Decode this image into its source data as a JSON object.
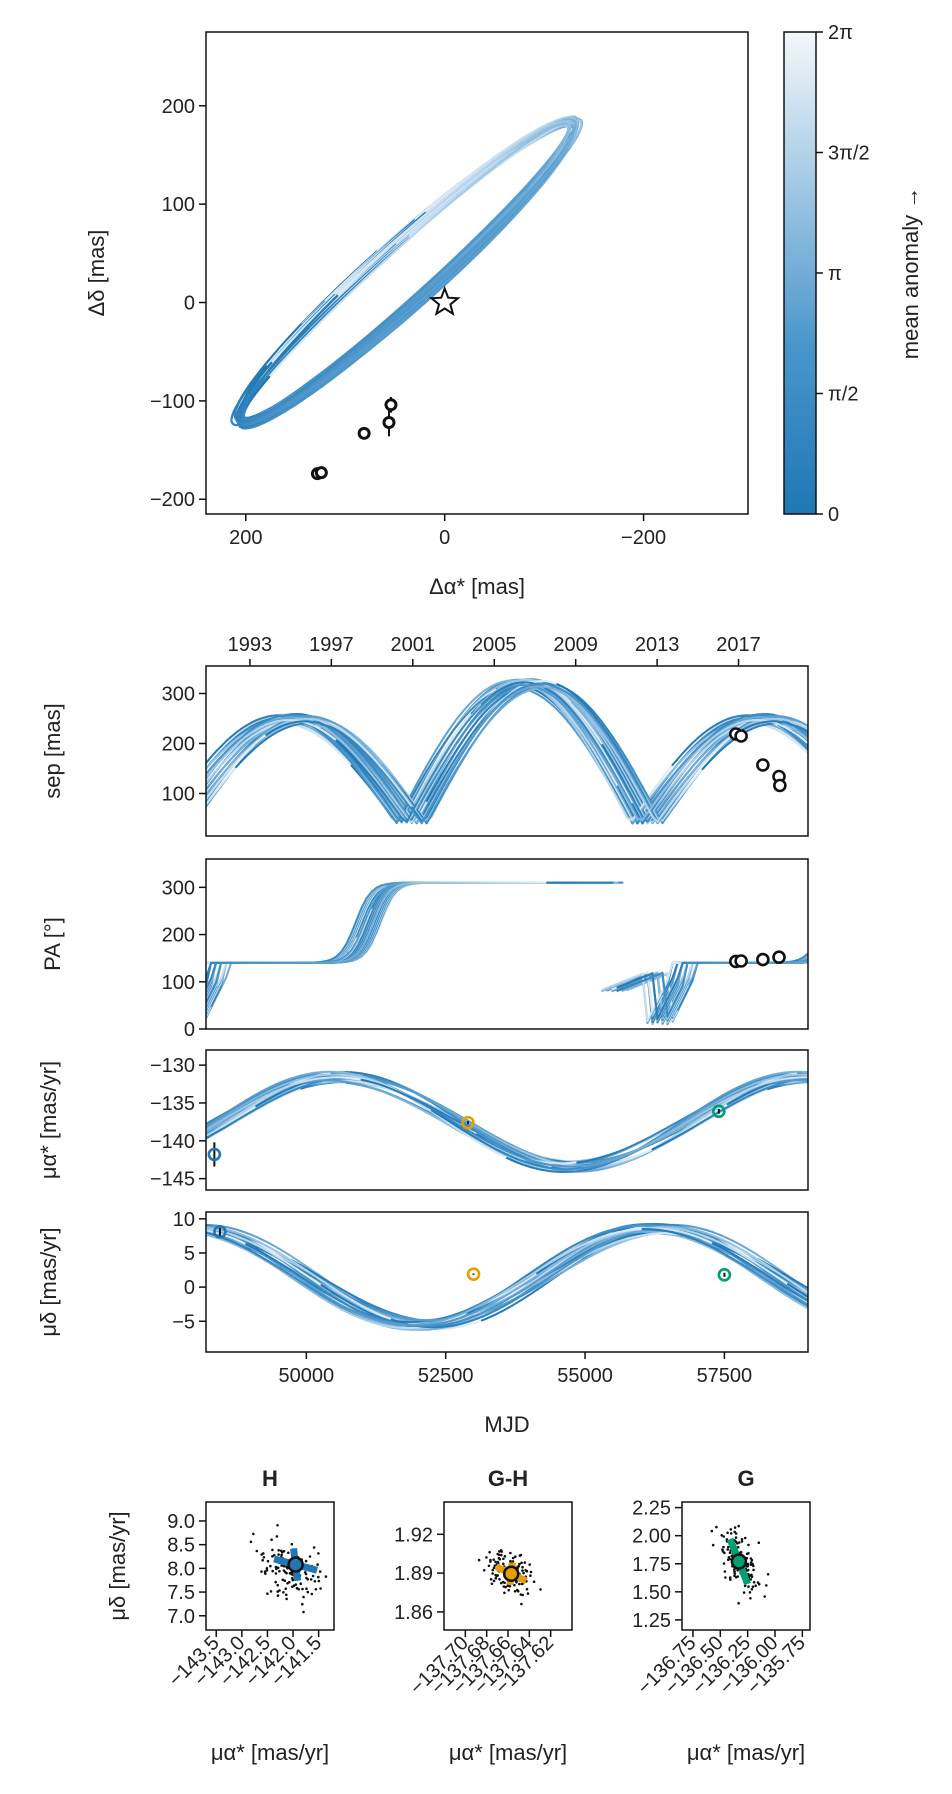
{
  "colors": {
    "curve_dark": "#1f77b4",
    "curve_mid": "#5a9fd0",
    "curve_light": "#e3eef7",
    "H": "#1f77b4",
    "GH": "#e69f00",
    "G": "#009e73",
    "axis": "#111111"
  },
  "chart_data": [
    {
      "id": "astrometry",
      "type": "line",
      "title": "",
      "xlabel": "Δα* [mas]",
      "ylabel": "Δδ [mas]",
      "xlim": [
        240,
        -305
      ],
      "ylim": [
        -215,
        275
      ],
      "xticks": [
        {
          "v": 200,
          "label": "200"
        },
        {
          "v": 0,
          "label": "0"
        },
        {
          "v": -200,
          "label": "−200"
        }
      ],
      "yticks": [
        {
          "v": 200,
          "label": "200"
        },
        {
          "v": 100,
          "label": "100"
        },
        {
          "v": 0,
          "label": "0"
        },
        {
          "v": -100,
          "label": "−100"
        },
        {
          "v": -200,
          "label": "−200"
        }
      ],
      "star": {
        "x": 0,
        "y": 0
      },
      "points": [
        {
          "x": 128,
          "y": -174,
          "ex": 4,
          "ey": 3
        },
        {
          "x": 124,
          "y": -173,
          "ex": 4,
          "ey": 3
        },
        {
          "x": 81,
          "y": -133,
          "ex": 6,
          "ey": 3
        },
        {
          "x": 56,
          "y": -122,
          "ex": 3,
          "ey": 14
        },
        {
          "x": 54,
          "y": -104,
          "ex": 3,
          "ey": 8
        }
      ],
      "colorbar": {
        "label": "mean anomaly →",
        "ticks": [
          {
            "v": 0,
            "label": "0"
          },
          {
            "v": 0.25,
            "label": "π/2"
          },
          {
            "v": 0.5,
            "label": "π"
          },
          {
            "v": 0.75,
            "label": "3π/2"
          },
          {
            "v": 1,
            "label": "2π"
          }
        ]
      }
    },
    {
      "id": "sep",
      "type": "line",
      "ylabel": "sep [mas]",
      "xlim": [
        48200,
        59000
      ],
      "ylim": [
        15,
        355
      ],
      "yticks": [
        {
          "v": 100,
          "label": "100"
        },
        {
          "v": 200,
          "label": "200"
        },
        {
          "v": 300,
          "label": "300"
        }
      ],
      "top_year_ticks": [
        {
          "mjd": 48988,
          "label": "1993"
        },
        {
          "mjd": 50449,
          "label": "1997"
        },
        {
          "mjd": 51910,
          "label": "2001"
        },
        {
          "mjd": 53371,
          "label": "2005"
        },
        {
          "mjd": 54832,
          "label": "2009"
        },
        {
          "mjd": 56293,
          "label": "2013"
        },
        {
          "mjd": 57754,
          "label": "2017"
        }
      ],
      "points": [
        {
          "x": 57705,
          "y": 219
        },
        {
          "x": 57800,
          "y": 215
        },
        {
          "x": 58190,
          "y": 157
        },
        {
          "x": 58480,
          "y": 134
        },
        {
          "x": 58495,
          "y": 116
        }
      ]
    },
    {
      "id": "pa",
      "type": "line",
      "ylabel": "PA [°]",
      "xlim": [
        48200,
        59000
      ],
      "ylim": [
        0,
        360
      ],
      "yticks": [
        {
          "v": 0,
          "label": "0"
        },
        {
          "v": 100,
          "label": "100"
        },
        {
          "v": 200,
          "label": "200"
        },
        {
          "v": 300,
          "label": "300"
        }
      ],
      "points": [
        {
          "x": 57705,
          "y": 143
        },
        {
          "x": 57800,
          "y": 144
        },
        {
          "x": 58190,
          "y": 147
        },
        {
          "x": 58480,
          "y": 152
        }
      ]
    },
    {
      "id": "pmra",
      "type": "line",
      "ylabel": "μα* [mas/yr]",
      "xlim": [
        48200,
        59000
      ],
      "ylim": [
        -146.5,
        -128
      ],
      "yticks": [
        {
          "v": -130,
          "label": "−130"
        },
        {
          "v": -135,
          "label": "−135"
        },
        {
          "v": -140,
          "label": "−140"
        },
        {
          "v": -145,
          "label": "−145"
        }
      ],
      "points": [
        {
          "x": 48350,
          "y": -141.8,
          "ey": 1.6,
          "group": "H"
        },
        {
          "x": 52900,
          "y": -137.6,
          "ey": 0.2,
          "group": "GH"
        },
        {
          "x": 57400,
          "y": -136.1,
          "ey": 0.3,
          "group": "G"
        }
      ]
    },
    {
      "id": "pmdec",
      "type": "line",
      "ylabel": "μδ [mas/yr]",
      "xlabel": "MJD",
      "xlim": [
        48200,
        59000
      ],
      "ylim": [
        -9.5,
        11
      ],
      "yticks": [
        {
          "v": 10,
          "label": "10"
        },
        {
          "v": 5,
          "label": "5"
        },
        {
          "v": 0,
          "label": "0"
        },
        {
          "v": -5,
          "label": "−5"
        }
      ],
      "xticks": [
        {
          "v": 50000,
          "label": "50000"
        },
        {
          "v": 52500,
          "label": "52500"
        },
        {
          "v": 55000,
          "label": "55000"
        },
        {
          "v": 57500,
          "label": "57500"
        }
      ],
      "points": [
        {
          "x": 48450,
          "y": 8.1,
          "ey": 0.6,
          "group": "H"
        },
        {
          "x": 53000,
          "y": 1.9,
          "ey": 0.1,
          "group": "GH"
        },
        {
          "x": 57500,
          "y": 1.8,
          "ey": 0.3,
          "group": "G"
        }
      ]
    },
    {
      "id": "H",
      "type": "scatter",
      "title": "H",
      "xlabel": "μα* [mas/yr]",
      "ylabel": "μδ [mas/yr]",
      "xlim": [
        -143.7,
        -141.2
      ],
      "ylim": [
        6.7,
        9.4
      ],
      "xticks": [
        {
          "v": -143.5,
          "label": "−143.5"
        },
        {
          "v": -143.0,
          "label": "−143.0"
        },
        {
          "v": -142.5,
          "label": "−142.5"
        },
        {
          "v": -142.0,
          "label": "−142.0"
        },
        {
          "v": -141.5,
          "label": "−141.5"
        }
      ],
      "yticks": [
        {
          "v": 7.0,
          "label": "7.0"
        },
        {
          "v": 7.5,
          "label": "7.5"
        },
        {
          "v": 8.0,
          "label": "8.0"
        },
        {
          "v": 8.5,
          "label": "8.5"
        },
        {
          "v": 9.0,
          "label": "9.0"
        }
      ],
      "center": {
        "x": -141.95,
        "y": 8.08
      },
      "major": {
        "dx": 0.42,
        "dy": -0.12
      },
      "minor": {
        "dx": -0.04,
        "dy": 0.34
      },
      "cloud": {
        "cx": -142.1,
        "cy": 8.0,
        "sx": 0.45,
        "sy": 0.42,
        "rho": -0.25,
        "n": 130
      }
    },
    {
      "id": "GH",
      "type": "scatter",
      "title": "G-H",
      "xlabel": "μα* [mas/yr]",
      "ylabel": "",
      "xlim": [
        -137.72,
        -137.6
      ],
      "ylim": [
        1.846,
        1.945
      ],
      "xticks": [
        {
          "v": -137.7,
          "label": "−137.70"
        },
        {
          "v": -137.68,
          "label": "−137.68"
        },
        {
          "v": -137.66,
          "label": "−137.66"
        },
        {
          "v": -137.64,
          "label": "−137.64"
        },
        {
          "v": -137.62,
          "label": "−137.62"
        }
      ],
      "yticks": [
        {
          "v": 1.86,
          "label": "1.86"
        },
        {
          "v": 1.89,
          "label": "1.89"
        },
        {
          "v": 1.92,
          "label": "1.92"
        }
      ],
      "center": {
        "x": -137.657,
        "y": 1.8895
      },
      "major": {
        "dx": 0.014,
        "dy": -0.0055
      },
      "minor": {
        "dx": 0.0012,
        "dy": 0.0085
      },
      "cloud": {
        "cx": -137.658,
        "cy": 1.8905,
        "sx": 0.016,
        "sy": 0.012,
        "rho": -0.3,
        "n": 130
      }
    },
    {
      "id": "G",
      "type": "scatter",
      "title": "G",
      "xlabel": "μα* [mas/yr]",
      "ylabel": "",
      "xlim": [
        -136.85,
        -135.68
      ],
      "ylim": [
        1.16,
        2.3
      ],
      "xticks": [
        {
          "v": -136.75,
          "label": "−136.75"
        },
        {
          "v": -136.5,
          "label": "−136.50"
        },
        {
          "v": -136.25,
          "label": "−136.25"
        },
        {
          "v": -136.0,
          "label": "−136.00"
        },
        {
          "v": -135.75,
          "label": "−135.75"
        }
      ],
      "yticks": [
        {
          "v": 1.25,
          "label": "1.25"
        },
        {
          "v": 1.5,
          "label": "1.50"
        },
        {
          "v": 1.75,
          "label": "1.75"
        },
        {
          "v": 2.0,
          "label": "2.00"
        },
        {
          "v": 2.25,
          "label": "2.25"
        }
      ],
      "center": {
        "x": -136.33,
        "y": 1.77
      },
      "major": {
        "dx": 0.08,
        "dy": -0.2
      },
      "minor": {
        "dx": 0.04,
        "dy": 0.02
      },
      "cloud": {
        "cx": -136.3,
        "cy": 1.74,
        "sx": 0.14,
        "sy": 0.2,
        "rho": -0.55,
        "n": 130
      }
    }
  ]
}
